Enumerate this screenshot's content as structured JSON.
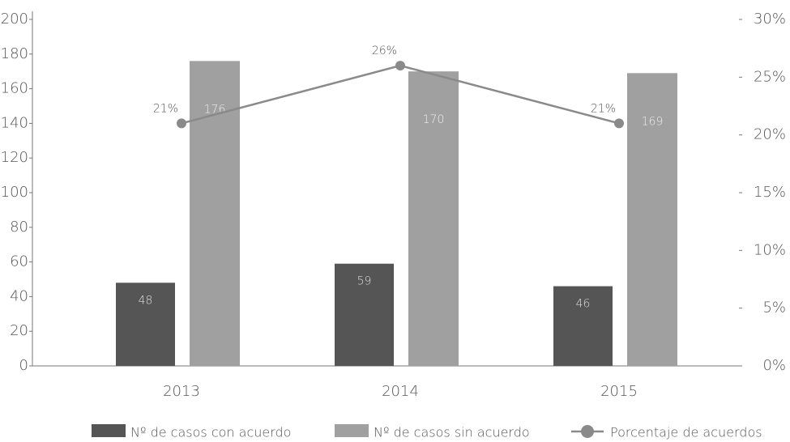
{
  "chart_data": {
    "type": "bar_line",
    "categories": [
      "2013",
      "2014",
      "2015"
    ],
    "series": [
      {
        "name": "Nº de casos con acuerdo",
        "color": "#555555",
        "values": [
          48,
          59,
          46
        ]
      },
      {
        "name": "Nº de casos sin acuerdo",
        "color": "#a0a0a0",
        "values": [
          176,
          170,
          169
        ]
      },
      {
        "name": "Porcentaje de acuerdos",
        "color": "#8a8a8a",
        "values": [
          21,
          26,
          21
        ],
        "axis": "y2",
        "value_labels": [
          "21%",
          "26%",
          "21%"
        ]
      }
    ],
    "ylim": [
      0,
      200
    ],
    "yticks": [
      0,
      20,
      40,
      60,
      80,
      100,
      120,
      140,
      160,
      180,
      200
    ],
    "y2lim": [
      0,
      30
    ],
    "y2ticks": [
      {
        "value": 0,
        "label": "0%"
      },
      {
        "value": 5,
        "label": "5%"
      },
      {
        "value": 10,
        "label": "10%"
      },
      {
        "value": 15,
        "label": "15%"
      },
      {
        "value": 20,
        "label": "20%"
      },
      {
        "value": 25,
        "label": "25%"
      },
      {
        "value": 30,
        "label": "30%"
      }
    ],
    "legend": "bottom"
  }
}
